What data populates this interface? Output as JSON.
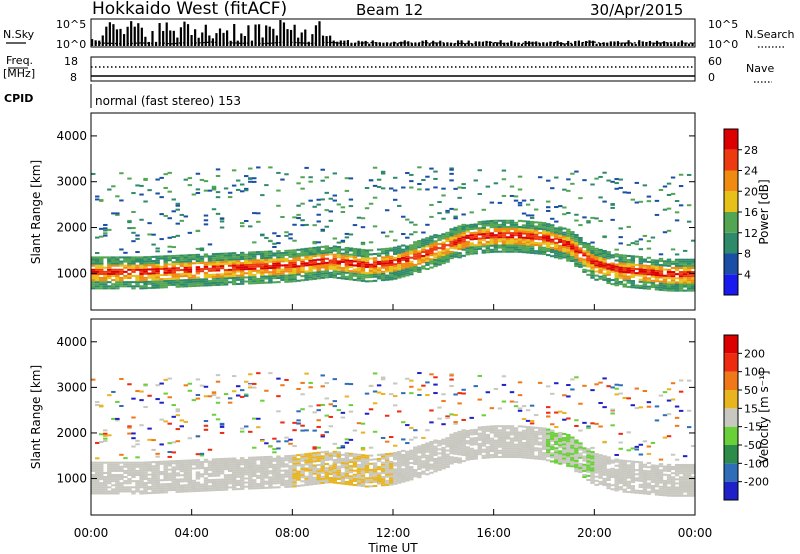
{
  "header": {
    "title": "Hokkaido West (fitACF)",
    "beam": "Beam 12",
    "date": "30/Apr/2015"
  },
  "noise_panel": {
    "left_label": "N.Sky",
    "right_label": "N.Search",
    "left_top": "10^5",
    "left_bottom": "10^0",
    "right_top": "10^5",
    "right_bottom": "10^0"
  },
  "freq_panel": {
    "left_label_1": "Freq.",
    "left_label_2": "[MHz]",
    "left_top": "18",
    "left_bottom": "8",
    "right_label": "Nave",
    "right_top": "60",
    "right_bottom": "0"
  },
  "cpid": {
    "label": "CPID",
    "text": "normal (fast stereo) 153"
  },
  "chart_data": [
    {
      "type": "heatmap",
      "title": "",
      "ylabel": "Slant Range [km]",
      "y_ticks": [
        "1000",
        "2000",
        "3000",
        "4000"
      ],
      "ylim": [
        200,
        4500
      ],
      "colorbar_label": "Power [dB]",
      "colorbar_ticks": [
        "4",
        "8",
        "12",
        "16",
        "20",
        "24",
        "28"
      ],
      "colorbar_range": [
        0,
        30
      ],
      "colors": [
        "#1a1aee",
        "#1b4fa6",
        "#2e8a6a",
        "#52a552",
        "#e8c01a",
        "#f08a10",
        "#ee3a10",
        "#dd0000"
      ],
      "echo_band": {
        "times_hours": [
          0,
          2,
          4,
          6,
          8,
          9.5,
          11,
          12,
          13,
          14,
          15,
          16,
          17,
          18,
          19,
          20,
          21,
          22,
          23,
          24
        ],
        "range_km": [
          1000,
          1000,
          1050,
          1100,
          1150,
          1250,
          1150,
          1200,
          1350,
          1550,
          1750,
          1800,
          1800,
          1750,
          1600,
          1200,
          1050,
          1000,
          950,
          950
        ]
      }
    },
    {
      "type": "heatmap",
      "title": "",
      "xlabel": "Time UT",
      "ylabel": "Slant Range [km]",
      "x_ticks": [
        "00:00",
        "04:00",
        "08:00",
        "12:00",
        "16:00",
        "20:00",
        "00:00"
      ],
      "y_ticks": [
        "1000",
        "2000",
        "3000",
        "4000"
      ],
      "ylim": [
        200,
        4500
      ],
      "colorbar_label": "Velocity [m s⁻¹]",
      "colorbar_ticks": [
        "200",
        "100",
        "50",
        "15",
        "-15",
        "-50",
        "-100",
        "-200"
      ],
      "colorbar_range": [
        -250,
        250
      ],
      "colors": [
        "#2020c8",
        "#2f6db8",
        "#2e8c4a",
        "#6ad03a",
        "#c8c8c0",
        "#e8b420",
        "#f07818",
        "#ee2a10",
        "#dd0000"
      ]
    }
  ]
}
